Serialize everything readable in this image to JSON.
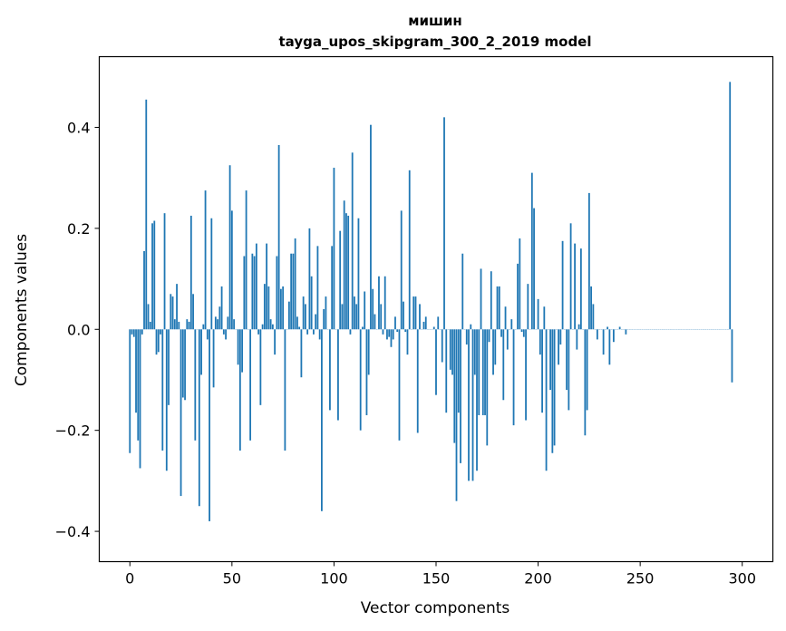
{
  "chart_data": {
    "type": "bar",
    "title": "мишин",
    "subtitle": "tayga_upos_skipgram_300_2_2019 model",
    "xlabel": "Vector components",
    "ylabel": "Components values",
    "xlim": [
      -15,
      315
    ],
    "ylim": [
      -0.46,
      0.54
    ],
    "xticks": [
      0,
      50,
      100,
      150,
      200,
      250,
      300
    ],
    "yticks": [
      -0.4,
      -0.2,
      0.0,
      0.2,
      0.4
    ],
    "ytick_labels": [
      "−0.4",
      "−0.2",
      "0.0",
      "0.2",
      "0.4"
    ],
    "bar_color": "#1f77b4",
    "values": [
      -0.245,
      -0.01,
      -0.015,
      -0.165,
      -0.22,
      -0.275,
      -0.01,
      0.155,
      0.455,
      0.05,
      0.015,
      0.21,
      0.215,
      -0.05,
      -0.045,
      -0.01,
      -0.24,
      0.23,
      -0.28,
      -0.15,
      0.07,
      0.065,
      0.02,
      0.09,
      0.015,
      -0.33,
      -0.135,
      -0.14,
      0.02,
      0.015,
      0.225,
      0.07,
      -0.22,
      0.0,
      -0.35,
      -0.09,
      0.01,
      0.275,
      -0.02,
      -0.38,
      0.22,
      -0.115,
      0.025,
      0.02,
      0.045,
      0.085,
      -0.01,
      -0.02,
      0.025,
      0.325,
      0.235,
      0.02,
      0.0,
      -0.07,
      -0.24,
      -0.085,
      0.145,
      0.275,
      0.0,
      -0.22,
      0.15,
      0.145,
      0.17,
      -0.01,
      -0.15,
      0.01,
      0.09,
      0.17,
      0.085,
      0.02,
      0.01,
      -0.05,
      0.145,
      0.365,
      0.08,
      0.085,
      -0.24,
      0.0,
      0.055,
      0.15,
      0.15,
      0.18,
      0.025,
      0.005,
      -0.095,
      0.065,
      0.05,
      -0.01,
      0.2,
      0.105,
      -0.01,
      0.03,
      0.165,
      -0.02,
      -0.36,
      0.04,
      0.065,
      0.0,
      -0.16,
      0.165,
      0.32,
      0.0,
      -0.18,
      0.195,
      0.05,
      0.255,
      0.23,
      0.225,
      -0.01,
      0.35,
      0.065,
      0.05,
      0.22,
      -0.2,
      0.005,
      0.075,
      -0.17,
      -0.09,
      0.405,
      0.08,
      0.03,
      0.0,
      0.105,
      0.05,
      -0.01,
      0.105,
      -0.02,
      -0.015,
      -0.035,
      -0.02,
      0.025,
      -0.005,
      -0.22,
      0.235,
      0.055,
      -0.005,
      -0.05,
      0.315,
      0.0,
      0.065,
      0.065,
      -0.205,
      0.05,
      0.0,
      0.015,
      0.025,
      0.0,
      0.0,
      0.0,
      0.005,
      -0.13,
      0.025,
      0.0,
      -0.065,
      0.42,
      -0.165,
      0.0,
      -0.08,
      -0.09,
      -0.225,
      -0.34,
      -0.165,
      -0.265,
      0.15,
      0.0,
      -0.03,
      -0.3,
      0.01,
      -0.3,
      -0.09,
      -0.28,
      -0.17,
      0.12,
      -0.17,
      -0.17,
      -0.23,
      -0.025,
      0.115,
      -0.09,
      -0.07,
      0.085,
      0.085,
      -0.015,
      -0.14,
      0.045,
      -0.04,
      0.0,
      0.02,
      -0.19,
      0.0,
      0.13,
      0.18,
      -0.005,
      -0.015,
      -0.18,
      0.09,
      0.0,
      0.31,
      0.24,
      0.0,
      0.06,
      -0.05,
      -0.165,
      0.045,
      -0.28,
      0.0,
      -0.12,
      -0.245,
      -0.23,
      0.0,
      -0.07,
      -0.03,
      0.175,
      0.0,
      -0.12,
      -0.16,
      0.21,
      0.0,
      0.17,
      -0.04,
      0.01,
      0.16,
      0.0,
      -0.21,
      -0.16,
      0.27,
      0.085,
      0.05,
      0.0,
      -0.02,
      0.0,
      0.0,
      -0.05,
      0.0,
      0.005,
      -0.07,
      0.0,
      -0.025,
      0.0,
      0.0,
      0.005,
      0.0,
      0.0,
      -0.01,
      0.0,
      0.0,
      0.0,
      0.0,
      0.0,
      0.0,
      0.0,
      0.0,
      0.0,
      0.0,
      0.0,
      0.0,
      0.0,
      0.0,
      0.0,
      0.0,
      0.0,
      0.0,
      0.0,
      0.0,
      0.0,
      0.0,
      0.0,
      0.0,
      0.0,
      0.0,
      0.0,
      0.0,
      0.0,
      0.0,
      0.0,
      0.0,
      0.0,
      0.0,
      0.0,
      0.0,
      0.0,
      0.0,
      0.0,
      0.0,
      0.0,
      0.0,
      0.0,
      0.0,
      0.0,
      0.0,
      0.0,
      0.0,
      0.0,
      0.0,
      0.49,
      -0.105
    ]
  }
}
